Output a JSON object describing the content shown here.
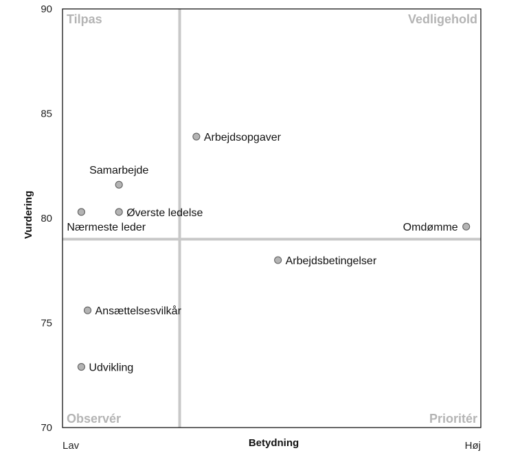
{
  "chart_data": {
    "type": "scatter",
    "title": "",
    "xlabel": "Betydning",
    "ylabel": "Vurdering",
    "xlim": [
      0,
      100
    ],
    "ylim": [
      70,
      90
    ],
    "x_tick_labels": [
      {
        "value": 0,
        "label": "Lav"
      },
      {
        "value": 100,
        "label": "Høj"
      }
    ],
    "y_ticks": [
      70,
      75,
      80,
      85,
      90
    ],
    "grid": false,
    "dividers": {
      "x": 28,
      "y": 79
    },
    "divider_color": "#c8c8c8",
    "quadrants": [
      {
        "position": "top-left",
        "label": "Tilpas"
      },
      {
        "position": "top-right",
        "label": "Vedligehold"
      },
      {
        "position": "bottom-left",
        "label": "Observér"
      },
      {
        "position": "bottom-right",
        "label": "Prioritér"
      }
    ],
    "quadrant_label_color": "#b4b4b4",
    "point_color": "#b4b4b4",
    "points": [
      {
        "label": "Arbejdsopgaver",
        "x": 32,
        "y": 83.9,
        "label_side": "right"
      },
      {
        "label": "Samarbejde",
        "x": 13.5,
        "y": 81.6,
        "label_side": "above"
      },
      {
        "label": "Øverste ledelse",
        "x": 13.5,
        "y": 80.3,
        "label_side": "right"
      },
      {
        "label": "Nærmeste leder",
        "x": 4.5,
        "y": 80.3,
        "label_side": "below"
      },
      {
        "label": "Omdømme",
        "x": 96.5,
        "y": 79.6,
        "label_side": "left"
      },
      {
        "label": "Arbejdsbetingelser",
        "x": 51.5,
        "y": 78,
        "label_side": "right"
      },
      {
        "label": "Ansættelsesvilkår",
        "x": 6,
        "y": 75.6,
        "label_side": "right"
      },
      {
        "label": "Udvikling",
        "x": 4.5,
        "y": 72.9,
        "label_side": "right"
      }
    ]
  }
}
